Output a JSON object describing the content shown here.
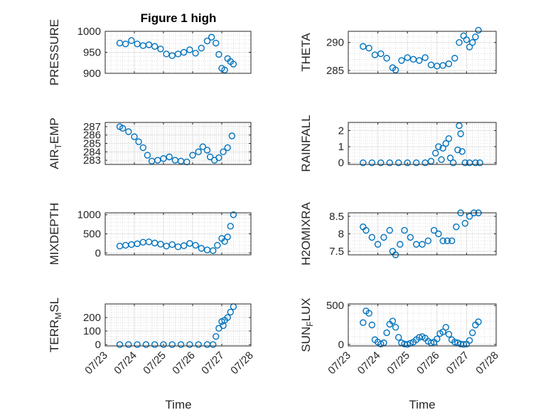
{
  "figure": {
    "title": "Figure 1 high",
    "xlabel_left": "Time",
    "xlabel_right": "Time"
  },
  "colors": {
    "marker": "#0072bd",
    "axes": "#262626",
    "grid": "#dcdcdc",
    "background": "#ffffff"
  },
  "chart_data": [
    {
      "type": "scatter",
      "id": "pressure",
      "ylabel": "PRESSURE",
      "ylim": [
        900,
        1000
      ],
      "yticks": [
        "900",
        "950",
        "1000"
      ],
      "xlim": [
        "07/23",
        "07/28"
      ],
      "xticks": [
        "07/23",
        "07/24",
        "07/25",
        "07/26",
        "07/27",
        "07/28"
      ],
      "grid": true,
      "x": [
        23.5,
        23.7,
        23.9,
        24.1,
        24.3,
        24.5,
        24.7,
        24.9,
        25.1,
        25.3,
        25.5,
        25.7,
        25.9,
        26.1,
        26.3,
        26.5,
        26.65,
        26.8,
        26.9,
        27.0,
        27.1,
        27.2,
        27.3,
        27.4
      ],
      "y": [
        972,
        970,
        978,
        970,
        966,
        968,
        964,
        958,
        946,
        942,
        946,
        950,
        956,
        948,
        960,
        977,
        986,
        972,
        945,
        912,
        908,
        935,
        928,
        922
      ]
    },
    {
      "type": "scatter",
      "id": "theta",
      "ylabel": "THETA",
      "ylim": [
        284.5,
        292
      ],
      "yticks": [
        "285",
        "290"
      ],
      "xlim": [
        "07/23",
        "07/28"
      ],
      "xticks": [
        "07/23",
        "07/24",
        "07/25",
        "07/26",
        "07/27",
        "07/28"
      ],
      "grid": true,
      "x": [
        23.5,
        23.7,
        23.9,
        24.1,
        24.3,
        24.5,
        24.6,
        24.8,
        25.0,
        25.2,
        25.4,
        25.6,
        25.8,
        26.0,
        26.2,
        26.4,
        26.6,
        26.75,
        26.9,
        27.0,
        27.1,
        27.2,
        27.3,
        27.4
      ],
      "y": [
        289.3,
        289.0,
        287.8,
        288.0,
        287.2,
        285.5,
        285.1,
        286.8,
        287.3,
        287.0,
        286.8,
        287.3,
        286.0,
        285.8,
        285.9,
        286.2,
        287.2,
        290.0,
        291.2,
        290.5,
        289.2,
        290.0,
        291.0,
        292.2
      ]
    },
    {
      "type": "scatter",
      "id": "air_temp",
      "ylabel": "AIR_TEMP",
      "ylim": [
        282.5,
        287.5
      ],
      "yticks": [
        "283",
        "284",
        "285",
        "286",
        "287"
      ],
      "xlim": [
        "07/23",
        "07/28"
      ],
      "xticks": [
        "07/23",
        "07/24",
        "07/25",
        "07/26",
        "07/27",
        "07/28"
      ],
      "grid": true,
      "x": [
        23.5,
        23.6,
        23.8,
        24.0,
        24.15,
        24.3,
        24.45,
        24.6,
        24.8,
        25.0,
        25.2,
        25.4,
        25.6,
        25.8,
        26.0,
        26.2,
        26.35,
        26.5,
        26.6,
        26.75,
        26.9,
        27.05,
        27.2,
        27.35
      ],
      "y": [
        287.0,
        286.8,
        286.4,
        285.8,
        285.2,
        284.5,
        283.6,
        282.9,
        283.0,
        283.2,
        283.4,
        283.0,
        282.9,
        282.8,
        283.6,
        284.0,
        284.6,
        284.2,
        283.4,
        283.0,
        283.3,
        284.0,
        284.5,
        285.9
      ]
    },
    {
      "type": "scatter",
      "id": "rainfall",
      "ylabel": "RAINFALL",
      "ylim": [
        -0.1,
        2.5
      ],
      "yticks": [
        "0",
        "1",
        "2"
      ],
      "xlim": [
        "07/23",
        "07/28"
      ],
      "xticks": [
        "07/23",
        "07/24",
        "07/25",
        "07/26",
        "07/27",
        "07/28"
      ],
      "grid": true,
      "x": [
        23.5,
        23.8,
        24.1,
        24.4,
        24.7,
        25.0,
        25.3,
        25.6,
        25.8,
        25.95,
        26.05,
        26.15,
        26.2,
        26.3,
        26.4,
        26.45,
        26.55,
        26.7,
        26.75,
        26.8,
        26.85,
        26.95,
        27.1,
        27.3,
        27.45
      ],
      "y": [
        0,
        0,
        0,
        0,
        0,
        0,
        0,
        0,
        0.1,
        0.6,
        1.0,
        0.2,
        0.9,
        1.2,
        1.5,
        0.3,
        0,
        0.8,
        2.3,
        1.8,
        0.7,
        0,
        0,
        0,
        0
      ]
    },
    {
      "type": "scatter",
      "id": "mixdepth",
      "ylabel": "MIXDEPTH",
      "ylim": [
        -50,
        1050
      ],
      "yticks": [
        "0",
        "500",
        "1000"
      ],
      "xlim": [
        "07/23",
        "07/28"
      ],
      "xticks": [
        "07/23",
        "07/24",
        "07/25",
        "07/26",
        "07/27",
        "07/28"
      ],
      "grid": true,
      "x": [
        23.5,
        23.7,
        23.9,
        24.1,
        24.3,
        24.5,
        24.7,
        24.9,
        25.1,
        25.3,
        25.5,
        25.7,
        25.9,
        26.1,
        26.3,
        26.5,
        26.7,
        26.85,
        27.0,
        27.1,
        27.2,
        27.3,
        27.4
      ],
      "y": [
        180,
        200,
        220,
        240,
        280,
        290,
        260,
        230,
        180,
        220,
        160,
        190,
        250,
        200,
        120,
        80,
        60,
        200,
        380,
        300,
        420,
        700,
        1000
      ]
    },
    {
      "type": "scatter",
      "id": "h2omixra",
      "ylabel": "H2OMIXRA",
      "ylim": [
        7.4,
        8.6
      ],
      "yticks": [
        "7.5",
        "8",
        "8.5"
      ],
      "xlim": [
        "07/23",
        "07/28"
      ],
      "xticks": [
        "07/23",
        "07/24",
        "07/25",
        "07/26",
        "07/27",
        "07/28"
      ],
      "grid": true,
      "x": [
        23.5,
        23.6,
        23.8,
        24.0,
        24.2,
        24.4,
        24.5,
        24.6,
        24.75,
        24.9,
        25.1,
        25.3,
        25.5,
        25.7,
        25.9,
        26.05,
        26.2,
        26.35,
        26.5,
        26.65,
        26.8,
        26.95,
        27.1,
        27.25,
        27.4
      ],
      "y": [
        8.2,
        8.1,
        7.9,
        7.7,
        7.9,
        8.1,
        7.5,
        7.4,
        7.7,
        8.1,
        7.9,
        7.7,
        7.7,
        7.8,
        8.1,
        8.0,
        7.8,
        7.8,
        7.8,
        8.2,
        8.6,
        8.3,
        8.5,
        8.6,
        8.6
      ]
    },
    {
      "type": "scatter",
      "id": "terr_msl",
      "ylabel": "TERR_MSL",
      "ylim": [
        -10,
        300
      ],
      "yticks": [
        "0",
        "100",
        "200"
      ],
      "xlim": [
        "07/23",
        "07/28"
      ],
      "xticks": [
        "07/23",
        "07/24",
        "07/25",
        "07/26",
        "07/27",
        "07/28"
      ],
      "grid": true,
      "x": [
        23.5,
        23.8,
        24.1,
        24.4,
        24.7,
        25.0,
        25.3,
        25.6,
        25.9,
        26.2,
        26.5,
        26.7,
        26.8,
        26.9,
        27.0,
        27.05,
        27.1,
        27.2,
        27.3,
        27.4
      ],
      "y": [
        0,
        0,
        0,
        0,
        0,
        0,
        0,
        0,
        0,
        0,
        0,
        0,
        60,
        120,
        170,
        140,
        180,
        200,
        240,
        280
      ]
    },
    {
      "type": "scatter",
      "id": "sunflux",
      "ylabel": "SUN_FLUX",
      "ylim": [
        -20,
        520
      ],
      "yticks": [
        "0",
        "500"
      ],
      "xlim": [
        "07/23",
        "07/28"
      ],
      "xticks": [
        "07/23",
        "07/24",
        "07/25",
        "07/26",
        "07/27",
        "07/28"
      ],
      "grid": true,
      "x": [
        23.5,
        23.6,
        23.7,
        23.8,
        23.9,
        24.0,
        24.1,
        24.2,
        24.3,
        24.4,
        24.5,
        24.6,
        24.7,
        24.8,
        24.9,
        25.0,
        25.1,
        25.2,
        25.3,
        25.4,
        25.5,
        25.6,
        25.7,
        25.8,
        25.9,
        26.0,
        26.1,
        26.2,
        26.3,
        26.4,
        26.5,
        26.6,
        26.7,
        26.8,
        26.9,
        27.0,
        27.1,
        27.2,
        27.3,
        27.4
      ],
      "y": [
        280,
        430,
        400,
        250,
        60,
        30,
        5,
        20,
        150,
        260,
        300,
        220,
        90,
        20,
        5,
        0,
        15,
        30,
        60,
        90,
        100,
        80,
        40,
        20,
        30,
        70,
        140,
        160,
        220,
        130,
        60,
        30,
        20,
        5,
        0,
        5,
        50,
        150,
        250,
        290
      ]
    }
  ]
}
